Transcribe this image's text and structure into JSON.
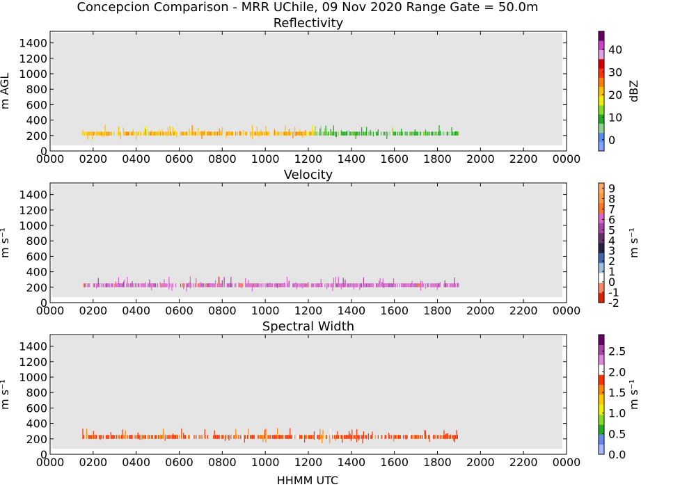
{
  "figure": {
    "title": "Concepcion Comparison - MRR UChile, 09 Nov 2020 Range Gate = 50.0m",
    "xlabel": "HHMM UTC",
    "background_color": "#e5e5e5"
  },
  "chart_data": [
    {
      "type": "heatmap",
      "title": "Reflectivity",
      "ylabel": "m AGL",
      "xticks": [
        "0000",
        "0200",
        "0400",
        "0600",
        "0800",
        "1000",
        "1200",
        "1400",
        "1600",
        "1800",
        "2000",
        "2200",
        "0000"
      ],
      "yticks": [
        0,
        200,
        400,
        600,
        800,
        1000,
        1200,
        1400
      ],
      "xlim_hours": [
        0,
        24
      ],
      "ylim": [
        0,
        1550
      ],
      "colorbar": {
        "label": "dBZ",
        "ticks": [
          "0",
          "10",
          "20",
          "30",
          "40"
        ],
        "tick_values": [
          0,
          10,
          20,
          30,
          40
        ],
        "range": [
          -5,
          48
        ],
        "colors": [
          "#7fa4ff",
          "#5a8cf0",
          "#8fd08f",
          "#22aa22",
          "#88dd22",
          "#f0f000",
          "#ffc000",
          "#ff8000",
          "#ff3300",
          "#d00000",
          "#e0a0e0",
          "#cc44cc",
          "#660066"
        ]
      },
      "data_extent_hours": [
        1.5,
        19.0
      ],
      "segments": [
        {
          "from_hours": 1.5,
          "to_hours": 12.3,
          "value": 22
        },
        {
          "from_hours": 12.3,
          "to_hours": 19.0,
          "value": 9
        }
      ]
    },
    {
      "type": "heatmap",
      "title": "Velocity",
      "ylabel": "m s⁻¹",
      "xticks": [
        "0000",
        "0200",
        "0400",
        "0600",
        "0800",
        "1000",
        "1200",
        "1400",
        "1600",
        "1800",
        "2000",
        "2200",
        "0000"
      ],
      "yticks": [
        0,
        200,
        400,
        600,
        800,
        1000,
        1200,
        1400
      ],
      "xlim_hours": [
        0,
        24
      ],
      "ylim": [
        0,
        1550
      ],
      "colorbar": {
        "label": "m s⁻¹",
        "ticks": [
          "-2",
          "-1",
          "0",
          "1",
          "2",
          "3",
          "4",
          "5",
          "6",
          "7",
          "8",
          "9"
        ],
        "tick_values": [
          -2,
          -1,
          0,
          1,
          2,
          3,
          4,
          5,
          6,
          7,
          8,
          9
        ],
        "range": [
          -2,
          9.5
        ],
        "colors": [
          "#dd2200",
          "#ff8866",
          "#ffffff",
          "#a0c0e0",
          "#4466aa",
          "#222244",
          "#663366",
          "#aa44aa",
          "#dd66cc",
          "#ff7722",
          "#ff9944",
          "#ffaa66"
        ]
      },
      "data_extent_hours": [
        1.5,
        19.0
      ],
      "segments": [
        {
          "from_hours": 1.5,
          "to_hours": 19.0,
          "value": 6
        }
      ]
    },
    {
      "type": "heatmap",
      "title": "Spectral Width",
      "ylabel": "m s⁻¹",
      "xticks": [
        "0000",
        "0200",
        "0400",
        "0600",
        "0800",
        "1000",
        "1200",
        "1400",
        "1600",
        "1800",
        "2000",
        "2200",
        "0000"
      ],
      "yticks": [
        0,
        200,
        400,
        600,
        800,
        1000,
        1200,
        1400
      ],
      "xlim_hours": [
        0,
        24
      ],
      "ylim": [
        0,
        1550
      ],
      "colorbar": {
        "label": "m s⁻¹",
        "ticks": [
          "0.0",
          "0.5",
          "1.0",
          "1.5",
          "2.0",
          "2.5"
        ],
        "tick_values": [
          0,
          0.5,
          1.0,
          1.5,
          2.0,
          2.5
        ],
        "range": [
          0,
          2.9
        ],
        "colors": [
          "#a8b8ff",
          "#6688ee",
          "#22aa22",
          "#88dd22",
          "#f0f000",
          "#ffcc00",
          "#ff8800",
          "#ff3300",
          "#ffffff",
          "#dd88dd",
          "#aa44aa",
          "#660066"
        ]
      },
      "data_extent_hours": [
        1.5,
        19.0
      ],
      "segments": [
        {
          "from_hours": 1.5,
          "to_hours": 19.0,
          "value": 1.8
        }
      ]
    }
  ]
}
